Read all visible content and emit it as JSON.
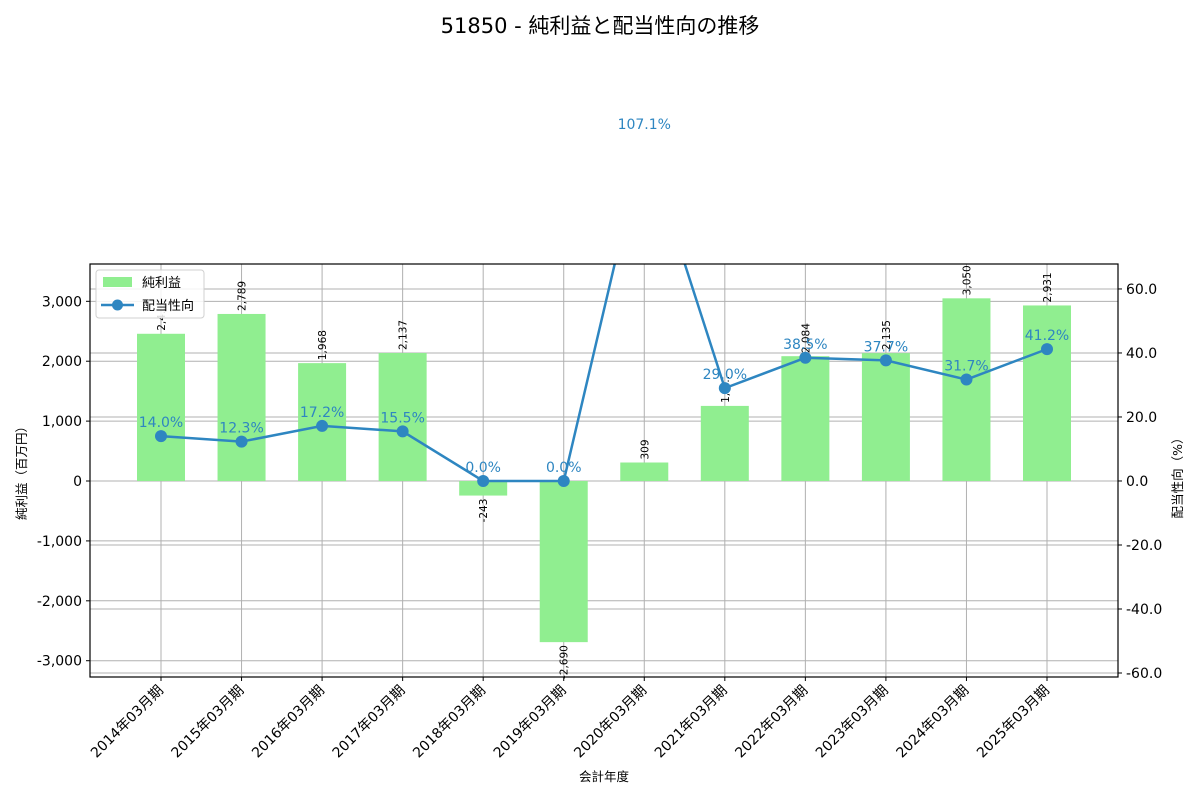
{
  "title": "51850 - 純利益と配当性向の推移",
  "colors": {
    "bar": "#90ee90",
    "line": "#2e86c1",
    "grid": "#b0b0b0",
    "axis": "#000000"
  },
  "chart_data": {
    "type": "bar+line",
    "title": "51850 - 純利益と配当性向の推移",
    "xlabel": "会計年度",
    "ylabel_left": "純利益（百万円）",
    "ylabel_right": "配当性向（%）",
    "categories": [
      "2014年03月期",
      "2015年03月期",
      "2016年03月期",
      "2017年03月期",
      "2018年03月期",
      "2019年03月期",
      "2020年03月期",
      "2021年03月期",
      "2022年03月期",
      "2023年03月期",
      "2024年03月期",
      "2025年03月期"
    ],
    "series": [
      {
        "name": "純利益",
        "type": "bar",
        "axis": "left",
        "values": [
          2458,
          2789,
          1968,
          2137,
          -243,
          -2690,
          309,
          1254,
          2084,
          2135,
          3050,
          2931
        ],
        "labels": [
          "2,4…",
          "2,789",
          "1,968",
          "2,137",
          "-243",
          "-2,690",
          "309",
          "1,2…",
          "2,084",
          "2,135",
          "3,050",
          "2,931"
        ]
      },
      {
        "name": "配当性向",
        "type": "line",
        "axis": "right",
        "values": [
          14.0,
          12.3,
          17.2,
          15.5,
          0.0,
          0.0,
          107.1,
          29.0,
          38.5,
          37.7,
          31.7,
          41.2
        ],
        "labels": [
          "14.0%",
          "12.3%",
          "17.2%",
          "15.5%",
          "0.0%",
          "0.0%",
          "107.1%",
          "29.0%",
          "38.5%",
          "37.7%",
          "31.7%",
          "41.2%"
        ]
      }
    ],
    "ylim_left": [
      -3272,
      3623
    ],
    "ylim_right": [
      -61.25,
      67.8
    ],
    "yticks_left": [
      -3000,
      -2000,
      -1000,
      0,
      1000,
      2000,
      3000
    ],
    "yticks_left_labels": [
      "-3,000",
      "-2,000",
      "-1,000",
      "0",
      "1,000",
      "2,000",
      "3,000"
    ],
    "yticks_right": [
      -60,
      -40,
      -20,
      0,
      20,
      40,
      60
    ],
    "yticks_right_labels": [
      "-60.0",
      "-40.0",
      "-20.0",
      "0.0",
      "20.0",
      "40.0",
      "60.0"
    ],
    "grid": true,
    "legend_position": "upper left",
    "legend": [
      "純利益",
      "配当性向"
    ]
  }
}
